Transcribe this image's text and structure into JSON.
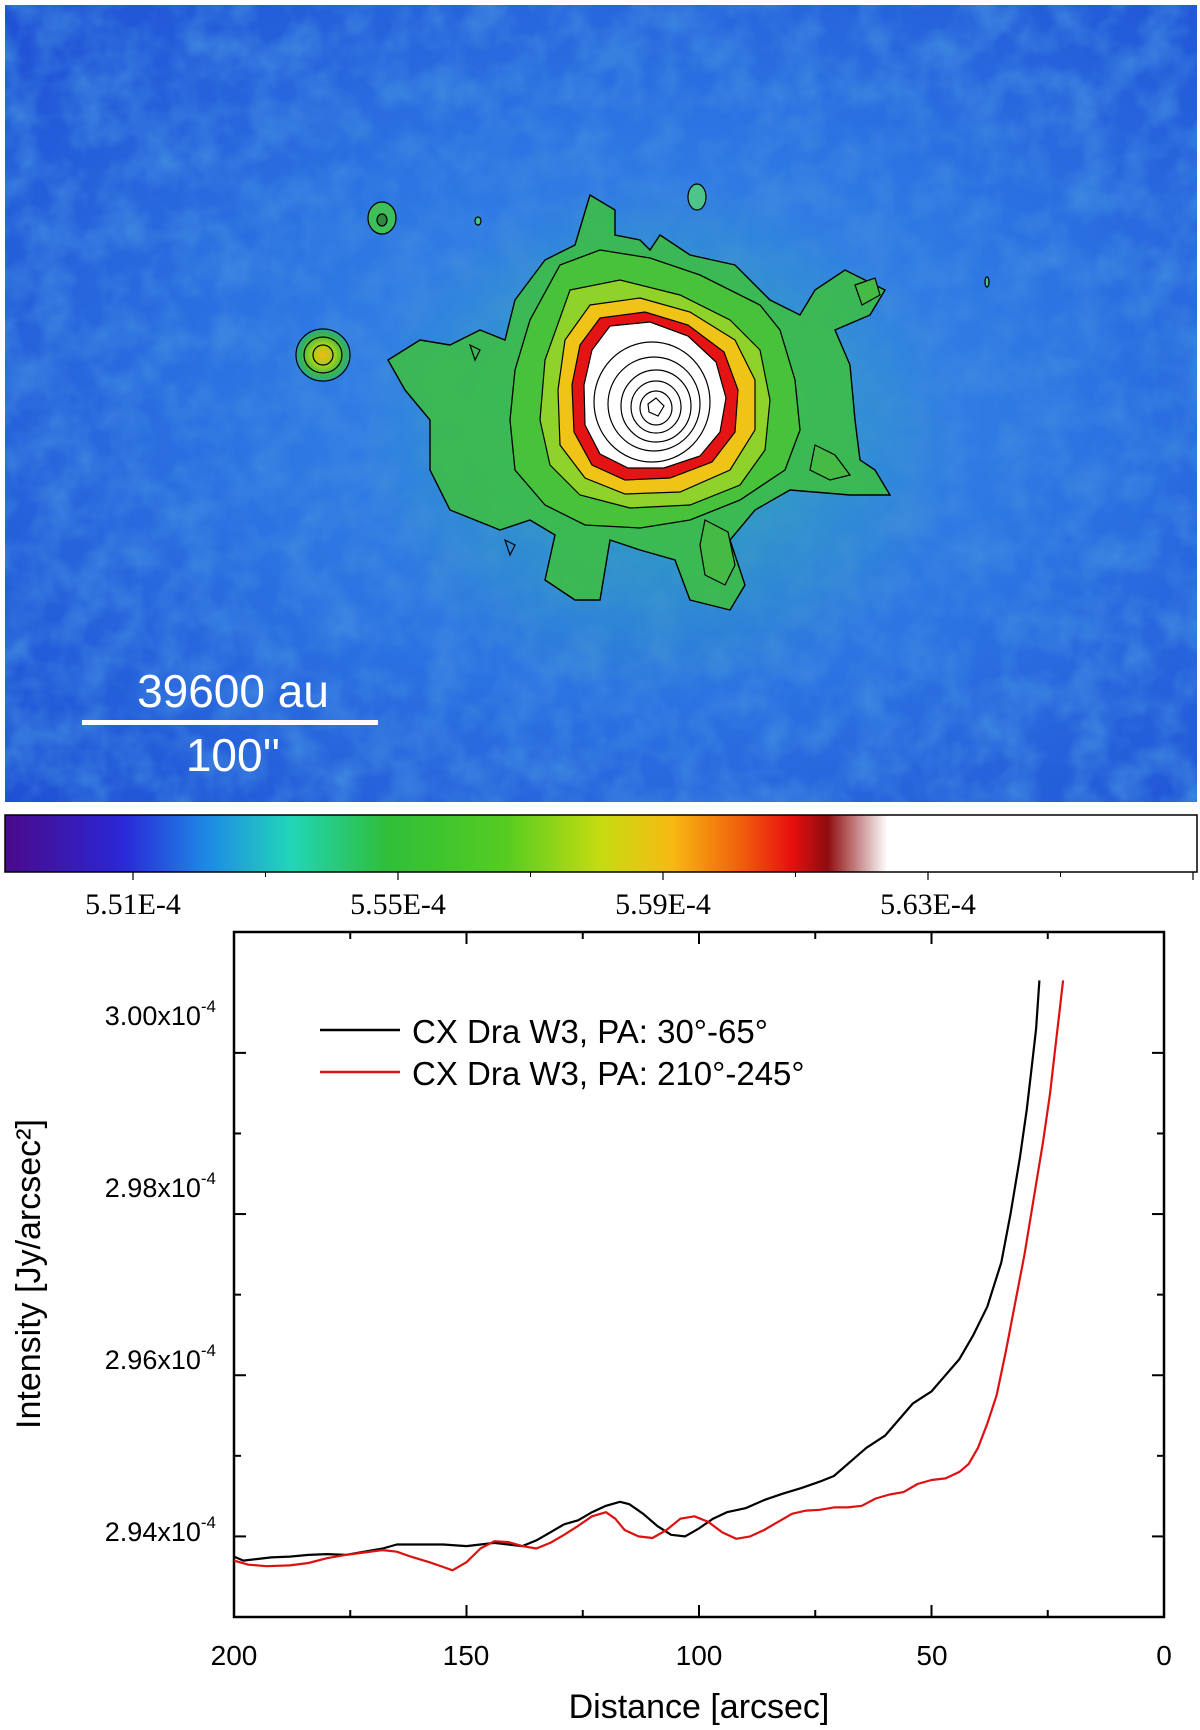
{
  "chart_data": [
    {
      "type": "image",
      "description_label": "WISE W3 intensity map of CX Dra with contours",
      "scalebar": {
        "top_label": "39600 au",
        "bottom_label": "100''"
      },
      "colorbar": {
        "ticks": [
          "5.51E-4",
          "5.55E-4",
          "5.59E-4",
          "5.63E-4"
        ],
        "range": [
          0.000549,
          0.000567
        ],
        "colors": [
          "#4a0a8a",
          "#2a28d8",
          "#1e8ae6",
          "#21d6b8",
          "#2fbe3a",
          "#55cc20",
          "#c6dc10",
          "#f7b912",
          "#f05a0c",
          "#e80f0f",
          "#8e0c10",
          "#ffffff"
        ]
      }
    },
    {
      "type": "line",
      "xlabel": "Distance [arcsec]",
      "ylabel": "Intensity [Jy/arcsec²]",
      "xlim": [
        200,
        0
      ],
      "ylim": [
        0.000293,
        0.0003015
      ],
      "xticks": [
        "200",
        "150",
        "100",
        "50",
        "0"
      ],
      "yticks": [
        {
          "base": "2.94x10",
          "exp": "-4"
        },
        {
          "base": "2.96x10",
          "exp": "-4"
        },
        {
          "base": "2.98x10",
          "exp": "-4"
        },
        {
          "base": "3.00x10",
          "exp": "-4"
        }
      ],
      "series": [
        {
          "name": "CX Dra W3, PA: 30°-65°",
          "color": "#000000",
          "x": [
            200,
            198,
            195,
            192,
            188,
            184,
            180,
            176,
            172,
            168,
            165,
            160,
            155,
            150,
            147,
            144,
            141,
            138,
            135,
            132,
            129,
            126,
            123,
            120,
            117,
            115,
            112,
            109,
            106,
            103,
            100,
            97,
            94,
            90,
            86,
            82,
            78,
            74,
            71,
            68,
            64,
            60,
            57,
            54,
            50,
            47,
            44,
            41,
            38,
            35,
            33,
            31,
            29.5,
            28.5,
            27.5,
            26.8
          ],
          "y": [
            2.9375,
            2.937,
            2.9372,
            2.9374,
            2.9375,
            2.9377,
            2.9378,
            2.9377,
            2.9381,
            2.9385,
            2.939,
            2.939,
            2.939,
            2.9388,
            2.939,
            2.9392,
            2.939,
            2.9388,
            2.9395,
            2.9405,
            2.9415,
            2.942,
            2.943,
            2.9438,
            2.9443,
            2.944,
            2.9428,
            2.9413,
            2.9402,
            2.94,
            2.941,
            2.9422,
            2.943,
            2.9435,
            2.9445,
            2.9453,
            2.946,
            2.9468,
            2.9475,
            2.949,
            2.951,
            2.9525,
            2.9545,
            2.9565,
            2.958,
            2.96,
            2.962,
            2.965,
            2.9685,
            2.974,
            2.98,
            2.987,
            2.993,
            2.998,
            3.003,
            3.009
          ]
        },
        {
          "name": "CX Dra W3, PA: 210°-245°",
          "color": "#dd1111",
          "x": [
            200,
            197,
            193,
            188,
            184,
            180,
            176,
            172,
            168,
            165,
            162,
            158,
            155,
            153,
            150,
            147,
            144,
            141,
            138,
            135,
            132,
            129,
            126,
            123,
            120,
            118,
            116,
            113,
            110,
            107,
            104,
            101,
            98,
            95,
            92,
            89,
            86,
            83,
            80,
            77,
            74,
            71,
            68,
            65,
            62,
            59,
            56,
            53,
            50,
            47,
            44,
            42,
            40,
            38,
            36,
            34,
            32,
            30,
            28,
            26,
            24.5,
            23.5,
            22.5,
            21.7
          ],
          "y": [
            2.937,
            2.9365,
            2.9363,
            2.9364,
            2.9367,
            2.9373,
            2.9377,
            2.938,
            2.9383,
            2.9381,
            2.9375,
            2.9368,
            2.9362,
            2.9358,
            2.9368,
            2.9385,
            2.9394,
            2.9393,
            2.9388,
            2.9385,
            2.9392,
            2.9402,
            2.9413,
            2.9425,
            2.943,
            2.9422,
            2.9408,
            2.94,
            2.9398,
            2.9408,
            2.9422,
            2.9425,
            2.9418,
            2.9405,
            2.9397,
            2.94,
            2.9408,
            2.9418,
            2.9428,
            2.9432,
            2.9433,
            2.9436,
            2.9436,
            2.9438,
            2.9447,
            2.9452,
            2.9455,
            2.9465,
            2.947,
            2.9472,
            2.948,
            2.949,
            2.951,
            2.954,
            2.9575,
            2.963,
            2.969,
            2.975,
            2.982,
            2.989,
            2.995,
            3.0,
            3.005,
            3.009
          ]
        }
      ]
    }
  ]
}
